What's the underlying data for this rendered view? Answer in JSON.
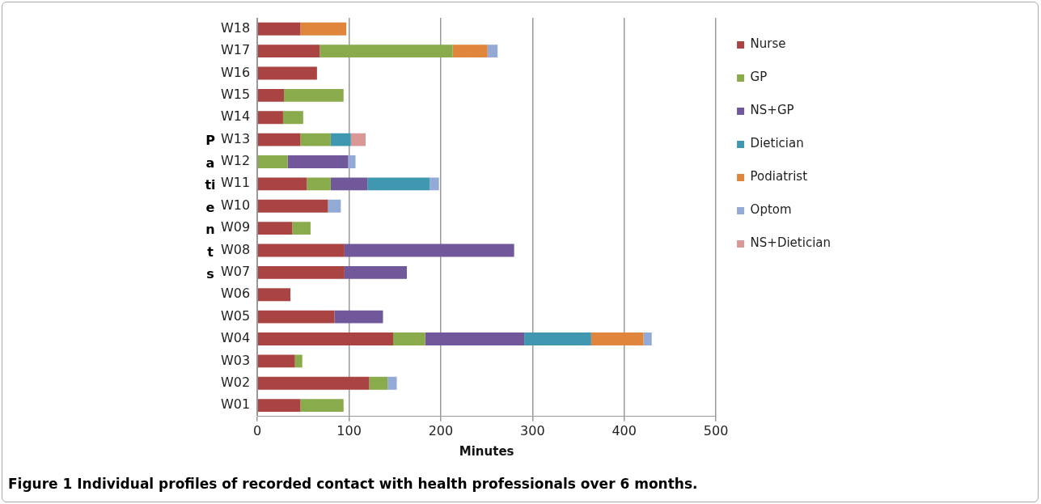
{
  "chart_data": {
    "type": "bar",
    "orientation": "horizontal",
    "stacked": true,
    "xlabel": "Minutes",
    "ylabel": "Patients",
    "categories": [
      "W18",
      "W17",
      "W16",
      "W15",
      "W14",
      "W13",
      "W12",
      "W11",
      "W10",
      "W09",
      "W08",
      "W07",
      "W06",
      "W05",
      "W04",
      "W03",
      "W02",
      "W01"
    ],
    "series": [
      {
        "name": "Nurse",
        "color": "#aa4443",
        "values": [
          47,
          68,
          65,
          29,
          28,
          47,
          null,
          54,
          77,
          38,
          95,
          95,
          36,
          84,
          148,
          41,
          122,
          47
        ]
      },
      {
        "name": "GP",
        "color": "#8aab4b",
        "values": [
          null,
          145,
          null,
          65,
          22,
          33,
          33,
          26,
          null,
          20,
          null,
          null,
          null,
          null,
          35,
          8,
          20,
          47
        ]
      },
      {
        "name": "NS+GP",
        "color": "#71589a",
        "values": [
          null,
          null,
          null,
          null,
          null,
          null,
          66,
          40,
          null,
          null,
          185,
          68,
          null,
          53,
          108,
          null,
          null,
          null
        ]
      },
      {
        "name": "Dietician",
        "color": "#4098b0",
        "values": [
          null,
          null,
          null,
          null,
          null,
          22,
          null,
          68,
          null,
          null,
          null,
          null,
          null,
          null,
          73,
          null,
          null,
          null
        ]
      },
      {
        "name": "Podiatrist",
        "color": "#e0863c",
        "values": [
          50,
          38,
          null,
          null,
          null,
          null,
          null,
          null,
          null,
          null,
          null,
          null,
          null,
          null,
          57,
          null,
          null,
          null
        ]
      },
      {
        "name": "Optom",
        "color": "#93a9d6",
        "values": [
          null,
          11,
          null,
          null,
          null,
          null,
          8,
          10,
          14,
          null,
          null,
          null,
          null,
          null,
          9,
          null,
          10,
          null
        ]
      },
      {
        "name": "NS+Dietician",
        "color": "#d99796",
        "values": [
          null,
          null,
          null,
          null,
          null,
          16,
          null,
          null,
          null,
          null,
          null,
          null,
          null,
          null,
          null,
          null,
          null,
          null
        ]
      }
    ],
    "xlim": [
      0,
      500
    ],
    "xticks": [
      0,
      100,
      200,
      300,
      400,
      500
    ],
    "grid": "x",
    "legend": "right",
    "annotations": [
      "Figure 1 Individual profiles of recorded contact with health professionals over 6 months."
    ]
  }
}
